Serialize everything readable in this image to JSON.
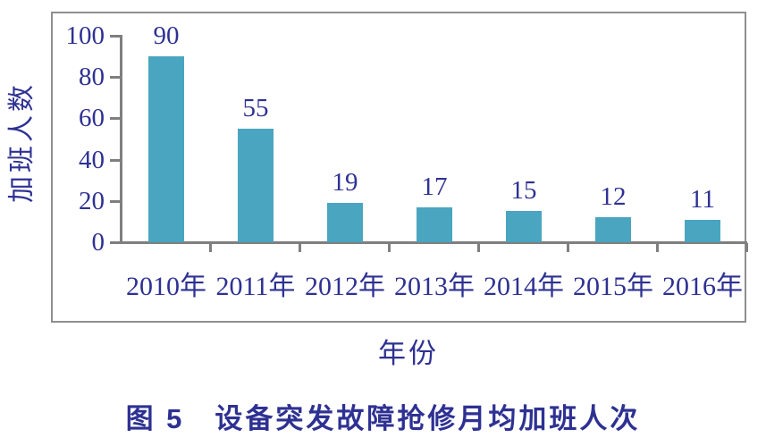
{
  "figure": {
    "caption": "图 5　设备突发故障抢修月均加班人次"
  },
  "chart_data": {
    "type": "bar",
    "title": "图 5　设备突发故障抢修月均加班人次",
    "categories": [
      "2010年",
      "2011年",
      "2012年",
      "2013年",
      "2014年",
      "2015年",
      "2016年"
    ],
    "values": [
      90,
      55,
      19,
      17,
      15,
      12,
      11
    ],
    "xlabel": "年份",
    "ylabel": "加班人数",
    "yticks": [
      0,
      20,
      40,
      60,
      80,
      100
    ],
    "ylim": [
      0,
      100
    ],
    "grid": false,
    "legend": "none",
    "bar_color": "#4aa5c0",
    "text_color": "#2e3192",
    "axis_color": "#7f7f7f",
    "frame_color": "#8f8f8f"
  }
}
